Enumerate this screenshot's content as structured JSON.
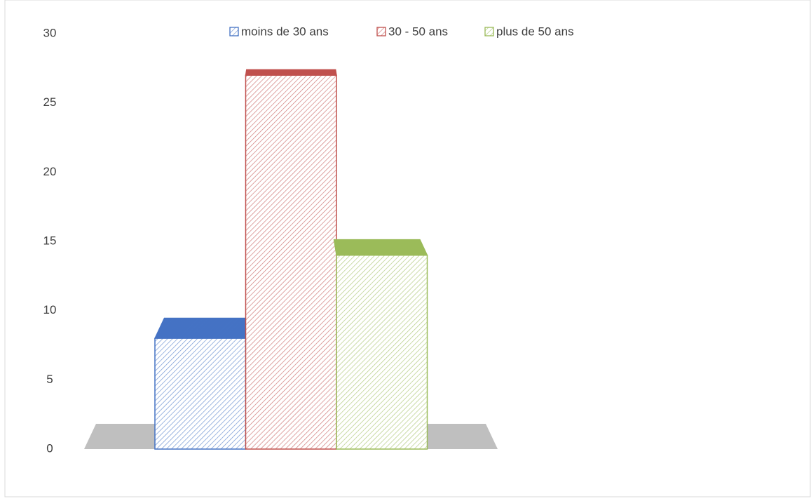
{
  "chart_data": {
    "type": "bar3d",
    "categories": [
      null
    ],
    "series": [
      {
        "name": "moins de 30 ans",
        "color": "#4472c4",
        "values": [
          8
        ]
      },
      {
        "name": "30 - 50 ans",
        "color": "#c0504d",
        "values": [
          27
        ]
      },
      {
        "name": "plus de 50 ans",
        "color": "#9bbb59",
        "values": [
          14
        ]
      }
    ],
    "ylim": [
      0,
      30
    ],
    "yticks": [
      0,
      5,
      10,
      15,
      20,
      25,
      30
    ],
    "grid": false,
    "legend": "top"
  }
}
